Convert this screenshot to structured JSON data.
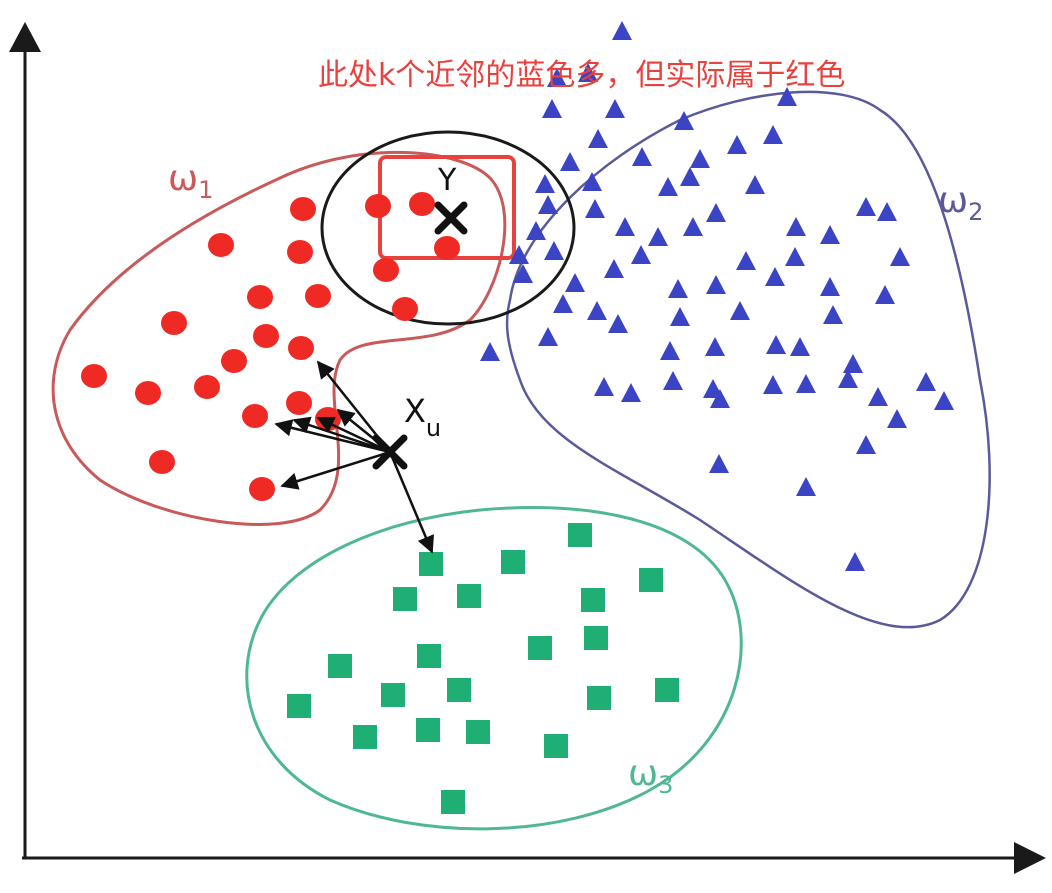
{
  "annotation": "此处k个近邻的蓝色多，但实际属于红色",
  "labels": {
    "omega1": "ω",
    "omega1_sub": "1",
    "omega2": "ω",
    "omega2_sub": "2",
    "omega3": "ω",
    "omega3_sub": "3",
    "xu": "X",
    "xu_sub": "u",
    "y": "Y"
  },
  "colors": {
    "red": "#ef2a24",
    "blue": "#3b44c4",
    "green": "#1fae73",
    "red_outline": "#c85a5a",
    "blue_outline": "#5a5a9a",
    "green_outline": "#4fb892",
    "highlight_box": "#e8423f",
    "axis": "#1a1a1a"
  },
  "icons": {
    "query_point": "x-mark-icon"
  }
}
